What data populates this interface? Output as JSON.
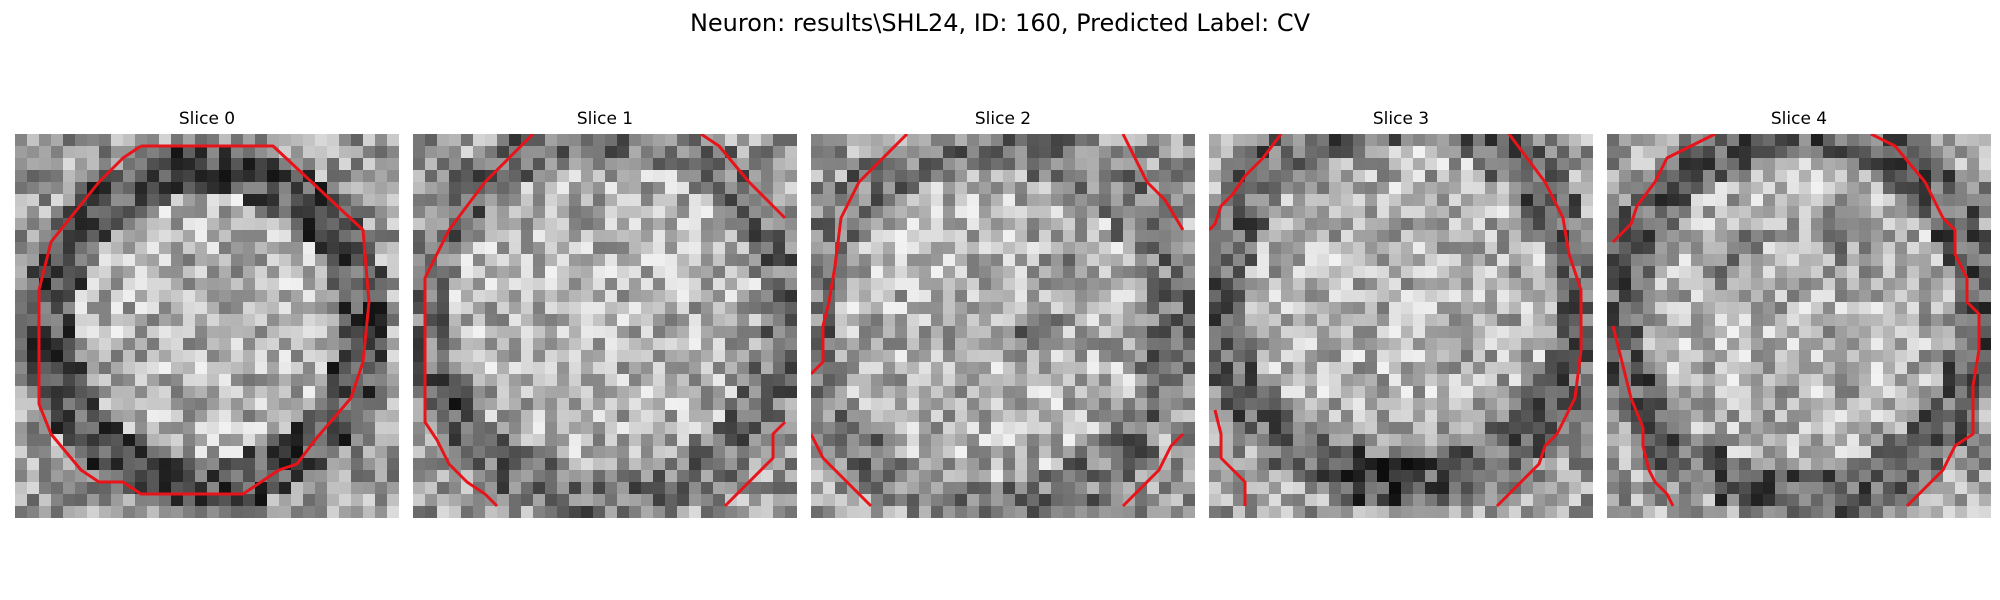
{
  "figure": {
    "title": "Neuron: results\\SHL24, ID: 160, Predicted Label: CV"
  },
  "panels": [
    {
      "title": "Slice 0"
    },
    {
      "title": "Slice 1"
    },
    {
      "title": "Slice 2"
    },
    {
      "title": "Slice 3"
    },
    {
      "title": "Slice 4"
    }
  ],
  "colors": {
    "contour": "#e8141a",
    "background": "#ffffff"
  },
  "image": {
    "colormap": "grayscale",
    "grid": "32x32 pixels per slice"
  }
}
